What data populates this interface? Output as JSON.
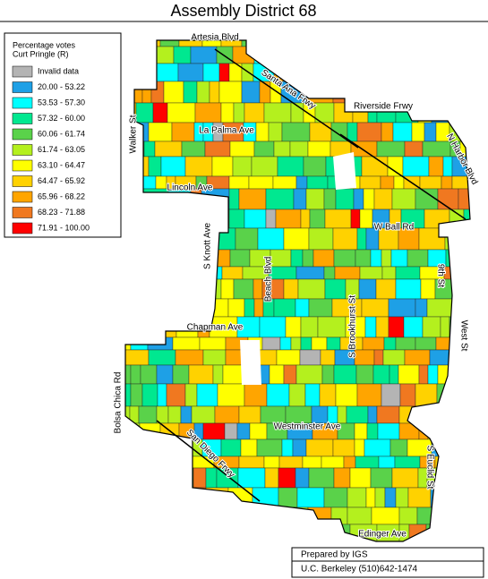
{
  "title": "Assembly District 68",
  "legend": {
    "title": [
      "Percentage votes",
      "Curt Pringle (R)"
    ],
    "items": [
      {
        "label": "Invalid data",
        "color": "#b4b4b4"
      },
      {
        "label": "20.00 - 53.22",
        "color": "#1ea0e6"
      },
      {
        "label": "53.53 - 57.30",
        "color": "#00ffff"
      },
      {
        "label": "57.32 - 60.00",
        "color": "#00e890"
      },
      {
        "label": "60.06 - 61.74",
        "color": "#5ad24a"
      },
      {
        "label": "61.74 - 63.05",
        "color": "#b4f01e"
      },
      {
        "label": "63.10 - 64.47",
        "color": "#ffff00"
      },
      {
        "label": "64.47 - 65.92",
        "color": "#ffd200"
      },
      {
        "label": "65.96 - 68.22",
        "color": "#ffa500"
      },
      {
        "label": "68.23 - 71.88",
        "color": "#f07820"
      },
      {
        "label": "71.91 - 100.00",
        "color": "#ff0000"
      }
    ]
  },
  "streets": [
    "Artesia Blvd",
    "Santa Ana Frwy",
    "Riverside Frwy",
    "N Harbor Blvd",
    "Walker St",
    "La Palma Ave",
    "Lincoln Ave",
    "S Knott Ave",
    "W Ball Rd",
    "Beach Blvd",
    "S Brookhurst St",
    "9th St",
    "West St",
    "Chapman Ave",
    "Bolsa Chica Rd",
    "Westminster Ave",
    "San Diego Frwy",
    "S Euclid St",
    "Edinger Ave"
  ],
  "footer": [
    "Prepared by IGS",
    "U.C. Berkeley    (510)642-1474"
  ]
}
